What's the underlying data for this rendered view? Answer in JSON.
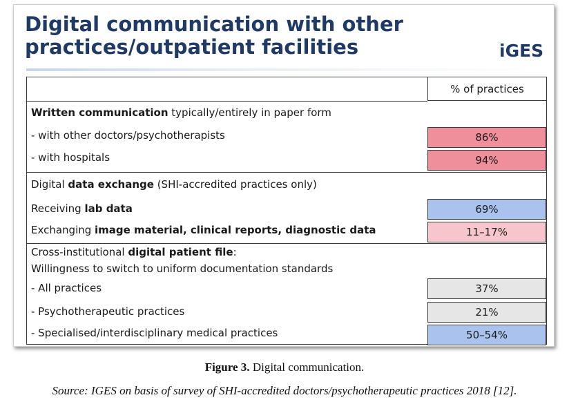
{
  "slide": {
    "title_line1": "Digital communication with other",
    "title_line2": "practices/outpatient facilities",
    "logo": "iGES"
  },
  "table": {
    "header": "% of practices",
    "sections": [
      {
        "heading_bold": "Written communication",
        "heading_rest": " typically/entirely in paper form",
        "rows": [
          {
            "label": "- with other doctors/psychotherapists",
            "value": "86%",
            "color": "#ee8f9b"
          },
          {
            "label": "- with hospitals",
            "value": "94%",
            "color": "#ee8f9b"
          }
        ]
      },
      {
        "heading_pre": "Digital ",
        "heading_bold": "data exchange",
        "heading_rest": " (SHI-accredited practices only)",
        "rows": [
          {
            "label_pre": "Receiving ",
            "label_bold": "lab data",
            "value": "69%",
            "color": "#a9c2ee"
          },
          {
            "label_pre": "Exchanging ",
            "label_bold": "image material, clinical reports, diagnostic data",
            "value": "11–17%",
            "color": "#f6c6cc"
          }
        ]
      },
      {
        "heading_pre": "Cross-institutional ",
        "heading_bold": "digital patient file",
        "heading_rest": ":",
        "subheading": "Willingness to switch to uniform documentation standards",
        "rows": [
          {
            "label": "- All practices",
            "value": "37%",
            "color": "#e6e6e6"
          },
          {
            "label": "- Psychotherapeutic practices",
            "value": "21%",
            "color": "#e6e6e6"
          },
          {
            "label": "- Specialised/interdisciplinary medical practices",
            "value": "50–54%",
            "color": "#a9c2ee"
          }
        ]
      }
    ]
  },
  "caption": {
    "label": "Figure 3.",
    "text": " Digital communication."
  },
  "source": "Source: IGES on basis of survey of SHI-accredited doctors/psychotherapeutic practices 2018 [12]."
}
